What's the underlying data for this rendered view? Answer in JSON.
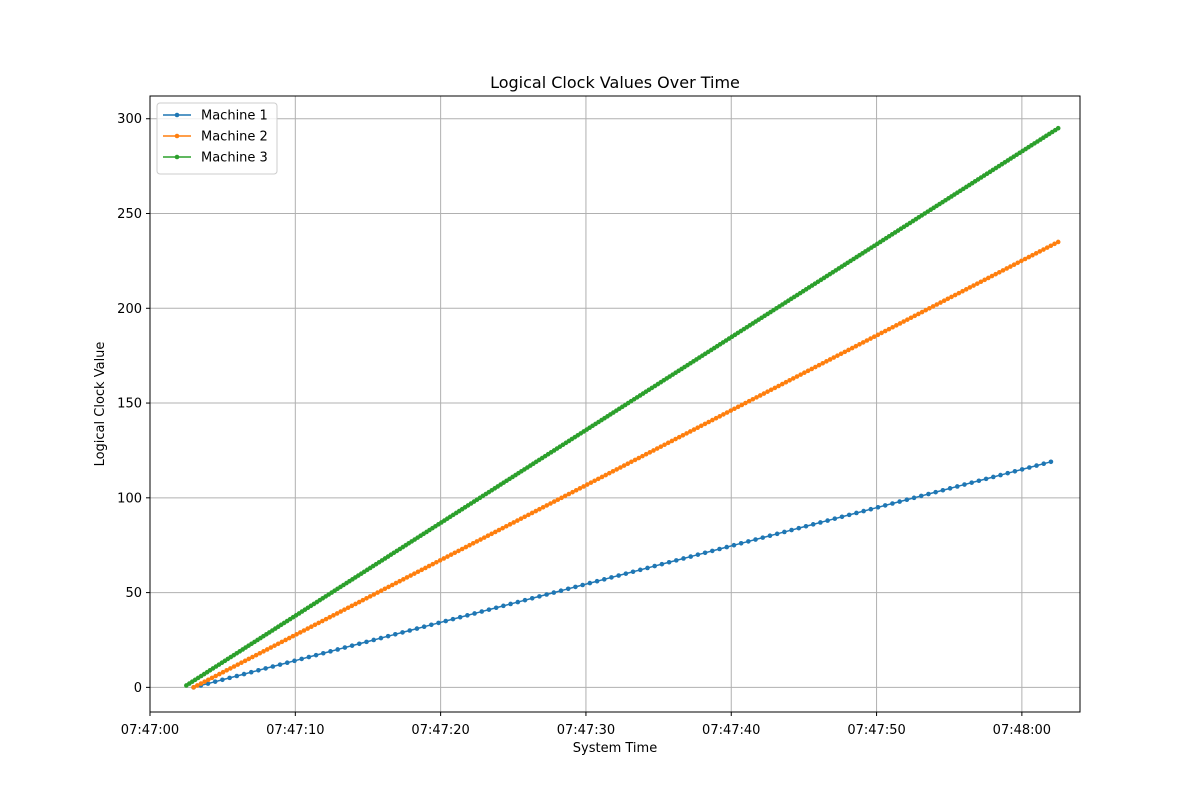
{
  "chart_data": {
    "type": "line",
    "title": "Logical Clock Values Over Time",
    "xlabel": "System Time",
    "ylabel": "Logical Clock Value",
    "xlim": [
      "07:47:00",
      "07:48:04"
    ],
    "ylim": [
      -13,
      312
    ],
    "x_ticks": [
      "07:47:00",
      "07:47:10",
      "07:47:20",
      "07:47:30",
      "07:47:40",
      "07:47:50",
      "07:48:00"
    ],
    "y_ticks": [
      0,
      50,
      100,
      150,
      200,
      250,
      300
    ],
    "grid": true,
    "legend_position": "top-left",
    "marker": "dot",
    "series": [
      {
        "name": "Machine 1",
        "color": "#1f77b4",
        "start": {
          "x": "07:47:03",
          "y": 0
        },
        "end": {
          "x": "07:48:02",
          "y": 119
        },
        "points": 120
      },
      {
        "name": "Machine 2",
        "color": "#ff7f0e",
        "start": {
          "x": "07:47:03",
          "y": 0
        },
        "end": {
          "x": "07:48:02.5",
          "y": 235
        },
        "points": 236
      },
      {
        "name": "Machine 3",
        "color": "#2ca02c",
        "start": {
          "x": "07:47:02.5",
          "y": 1
        },
        "end": {
          "x": "07:48:02.5",
          "y": 295
        },
        "points": 295
      }
    ]
  }
}
